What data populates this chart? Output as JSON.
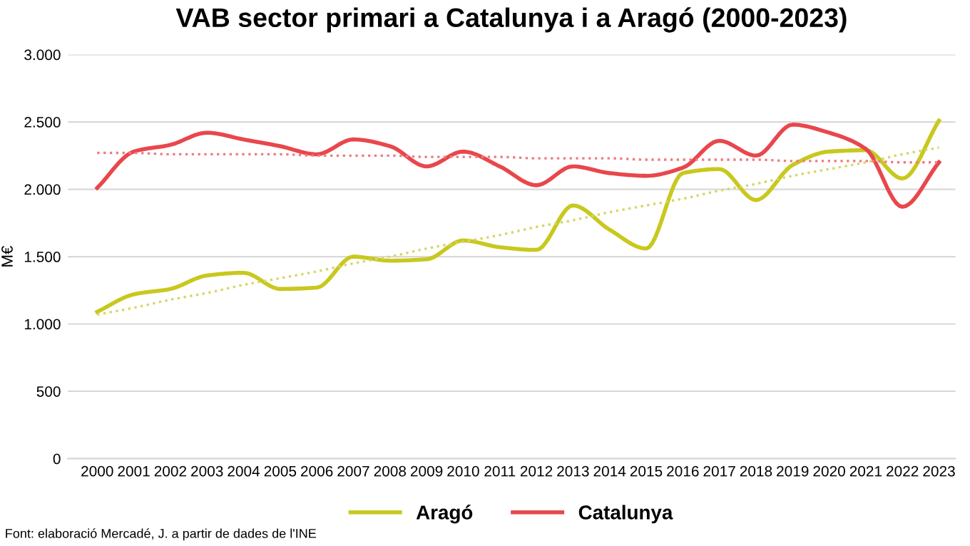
{
  "chart_data": {
    "type": "line",
    "title": "VAB sector primari a Catalunya i a Aragó (2000-2023)",
    "ylabel": "M€",
    "x": [
      2000,
      2001,
      2002,
      2003,
      2004,
      2005,
      2006,
      2007,
      2008,
      2009,
      2010,
      2011,
      2012,
      2013,
      2014,
      2015,
      2016,
      2017,
      2018,
      2019,
      2020,
      2021,
      2022,
      2023
    ],
    "series": [
      {
        "name": "Aragó",
        "color": "#c8c81e",
        "line_style": "solid",
        "values": [
          1090,
          1220,
          1260,
          1360,
          1380,
          1260,
          1270,
          1500,
          1470,
          1480,
          1620,
          1570,
          1550,
          1880,
          1700,
          1560,
          2120,
          2150,
          1920,
          2180,
          2280,
          2290,
          2080,
          2510
        ]
      },
      {
        "name": "Catalunya",
        "color": "#e8474c",
        "line_style": "solid",
        "values": [
          2010,
          2280,
          2330,
          2420,
          2370,
          2320,
          2260,
          2370,
          2320,
          2170,
          2280,
          2170,
          2030,
          2170,
          2120,
          2100,
          2160,
          2360,
          2250,
          2480,
          2420,
          2300,
          1870,
          2200
        ]
      },
      {
        "color": "#d6d66a",
        "line_style": "dotted",
        "values": [
          1070,
          1120,
          1180,
          1230,
          1290,
          1340,
          1390,
          1450,
          1500,
          1560,
          1610,
          1660,
          1720,
          1770,
          1830,
          1880,
          1930,
          1990,
          2040,
          2100,
          2150,
          2200,
          2260,
          2310
        ]
      },
      {
        "color": "#ee7c80",
        "line_style": "dotted",
        "values": [
          2270,
          2270,
          2260,
          2260,
          2260,
          2260,
          2250,
          2250,
          2250,
          2240,
          2240,
          2240,
          2230,
          2230,
          2230,
          2220,
          2220,
          2220,
          2220,
          2210,
          2210,
          2210,
          2200,
          2200
        ]
      }
    ],
    "xlim": [
      1999.2,
      2023.45
    ],
    "xticks": [
      2000,
      2001,
      2002,
      2003,
      2004,
      2005,
      2006,
      2007,
      2008,
      2009,
      2010,
      2011,
      2012,
      2013,
      2014,
      2015,
      2016,
      2017,
      2018,
      2019,
      2020,
      2021,
      2022,
      2023
    ],
    "ylim": [
      0,
      3000
    ],
    "yticks": [
      {
        "value": 0,
        "label": "0"
      },
      {
        "value": 500,
        "label": "500"
      },
      {
        "value": 1000,
        "label": "1.000"
      },
      {
        "value": 1500,
        "label": "1.500"
      },
      {
        "value": 2000,
        "label": "2.000"
      },
      {
        "value": 2500,
        "label": "2.500"
      },
      {
        "value": 3000,
        "label": "3.000"
      }
    ],
    "grid": "y",
    "legend": "bottom",
    "marker": "none",
    "annotations": [
      "Font: elaboració Mercadé, J. a partir de dades de l'INE"
    ]
  }
}
